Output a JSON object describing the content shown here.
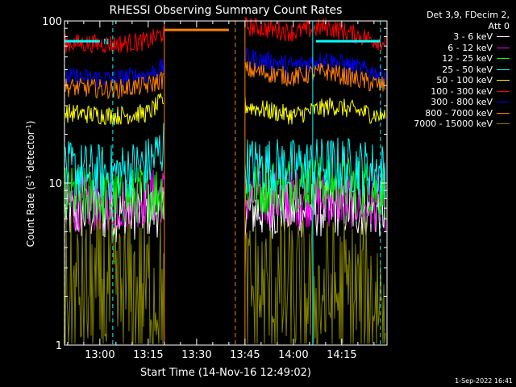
{
  "chart_data": {
    "type": "line",
    "title": "RHESSI Observing Summary Count Rates",
    "xlabel": "Start Time (14-Nov-16 12:49:02)",
    "ylabel_main": "Count Rate (s",
    "ylabel_sup1": "-1",
    "ylabel_mid": " detector",
    "ylabel_sup2": "-1",
    "ylabel_end": ")",
    "yscale": "log",
    "ylim": [
      1,
      100
    ],
    "xlim": [
      "12:49:02",
      "14:29:02"
    ],
    "x_ticks": [
      "13:00",
      "13:15",
      "13:30",
      "13:45",
      "14:00",
      "14:15"
    ],
    "y_ticks": [
      "1",
      "10",
      "100"
    ],
    "legend_header": [
      "Det 3,9, FDecim 2,",
      "Att 0"
    ],
    "series": [
      {
        "name": "3 - 6 keV",
        "color": "#ffffff",
        "points": [
          [
            "12:50",
            6.5
          ],
          [
            "13:05",
            6.5
          ],
          [
            "13:20",
            7.0
          ],
          [
            "13:45",
            6.8
          ],
          [
            "14:00",
            6.8
          ],
          [
            "14:15",
            7.0
          ],
          [
            "14:27",
            6.8
          ]
        ]
      },
      {
        "name": "6 - 12 keV",
        "color": "#ff00ff",
        "points": [
          [
            "12:50",
            7.5
          ],
          [
            "13:05",
            7.5
          ],
          [
            "13:20",
            8.5
          ],
          [
            "13:45",
            8.0
          ],
          [
            "14:00",
            8.0
          ],
          [
            "14:15",
            8.0
          ],
          [
            "14:27",
            7.5
          ]
        ]
      },
      {
        "name": "12 - 25 keV",
        "color": "#00ff00",
        "points": [
          [
            "12:50",
            8.5
          ],
          [
            "13:05",
            8.0
          ],
          [
            "13:20",
            9.0
          ],
          [
            "13:45",
            9.0
          ],
          [
            "14:00",
            10.0
          ],
          [
            "14:15",
            10.0
          ],
          [
            "14:27",
            9.0
          ]
        ]
      },
      {
        "name": "25 - 50 keV",
        "color": "#00ffff",
        "points": [
          [
            "12:50",
            12.0
          ],
          [
            "13:05",
            11.5
          ],
          [
            "13:15",
            13.0
          ],
          [
            "13:20",
            17.0
          ],
          [
            "13:45",
            13.0
          ],
          [
            "14:00",
            12.5
          ],
          [
            "14:15",
            13.0
          ],
          [
            "14:27",
            12.0
          ]
        ]
      },
      {
        "name": "50 - 100 keV",
        "color": "#ffff00",
        "points": [
          [
            "12:50",
            27.0
          ],
          [
            "13:05",
            26.0
          ],
          [
            "13:15",
            27.0
          ],
          [
            "13:20",
            33.0
          ],
          [
            "13:45",
            30.0
          ],
          [
            "14:00",
            26.0
          ],
          [
            "14:12",
            30.0
          ],
          [
            "14:27",
            26.0
          ]
        ]
      },
      {
        "name": "100 - 300 keV",
        "color": "#ff0000",
        "points": [
          [
            "12:50",
            73.0
          ],
          [
            "13:05",
            72.0
          ],
          [
            "13:15",
            75.0
          ],
          [
            "13:20",
            85.0
          ],
          [
            "13:45",
            93.0
          ],
          [
            "14:00",
            85.0
          ],
          [
            "14:10",
            92.0
          ],
          [
            "14:27",
            75.0
          ]
        ]
      },
      {
        "name": "300 - 800 keV",
        "color": "#0000ff",
        "points": [
          [
            "12:50",
            45.0
          ],
          [
            "13:05",
            44.0
          ],
          [
            "13:15",
            47.0
          ],
          [
            "13:20",
            52.0
          ],
          [
            "13:45",
            60.0
          ],
          [
            "14:00",
            53.0
          ],
          [
            "14:10",
            58.0
          ],
          [
            "14:27",
            47.0
          ]
        ]
      },
      {
        "name": "800 - 7000 keV",
        "color": "#ff8000",
        "points": [
          [
            "12:50",
            39.0
          ],
          [
            "13:05",
            38.0
          ],
          [
            "13:15",
            40.0
          ],
          [
            "13:20",
            44.0
          ],
          [
            "13:45",
            50.0
          ],
          [
            "14:00",
            45.0
          ],
          [
            "14:10",
            49.0
          ],
          [
            "14:27",
            40.0
          ]
        ]
      },
      {
        "name": "7000 - 15000 keV",
        "color": "#808000",
        "points": [
          [
            "12:50",
            2.0
          ],
          [
            "13:05",
            2.0
          ],
          [
            "13:20",
            2.2
          ],
          [
            "13:45",
            2.0
          ],
          [
            "14:00",
            2.0
          ],
          [
            "14:27",
            2.0
          ]
        ]
      }
    ],
    "flag_bars": [
      {
        "label": "N",
        "color": "#00ffff",
        "start": "12:49",
        "end": "13:00",
        "level": 75
      },
      {
        "label": "",
        "color": "#00ffff",
        "start": "14:07",
        "end": "14:27",
        "level": 75
      },
      {
        "label": "",
        "color": "#ff8000",
        "start": "13:20",
        "end": "13:40",
        "level": 88
      }
    ],
    "vertical_markers": [
      {
        "time": "12:49",
        "color": "#00ffff",
        "style": "dashed"
      },
      {
        "time": "13:04",
        "color": "#00ffff",
        "style": "dashed"
      },
      {
        "time": "13:20",
        "color": "#ff8000",
        "style": "solid"
      },
      {
        "time": "13:42",
        "color": "#ff8000",
        "style": "dashed"
      },
      {
        "time": "13:45",
        "color": "#ff8000",
        "style": "solid"
      },
      {
        "time": "14:06",
        "color": "#00ffff",
        "style": "solid"
      },
      {
        "time": "14:27",
        "color": "#00ffff",
        "style": "dashed"
      }
    ],
    "data_gaps": [
      {
        "start": "13:20",
        "end": "13:45"
      }
    ],
    "grid": false,
    "legend_position": "right"
  },
  "footer": {
    "stamp": "1-Sep-2022 16:41"
  }
}
